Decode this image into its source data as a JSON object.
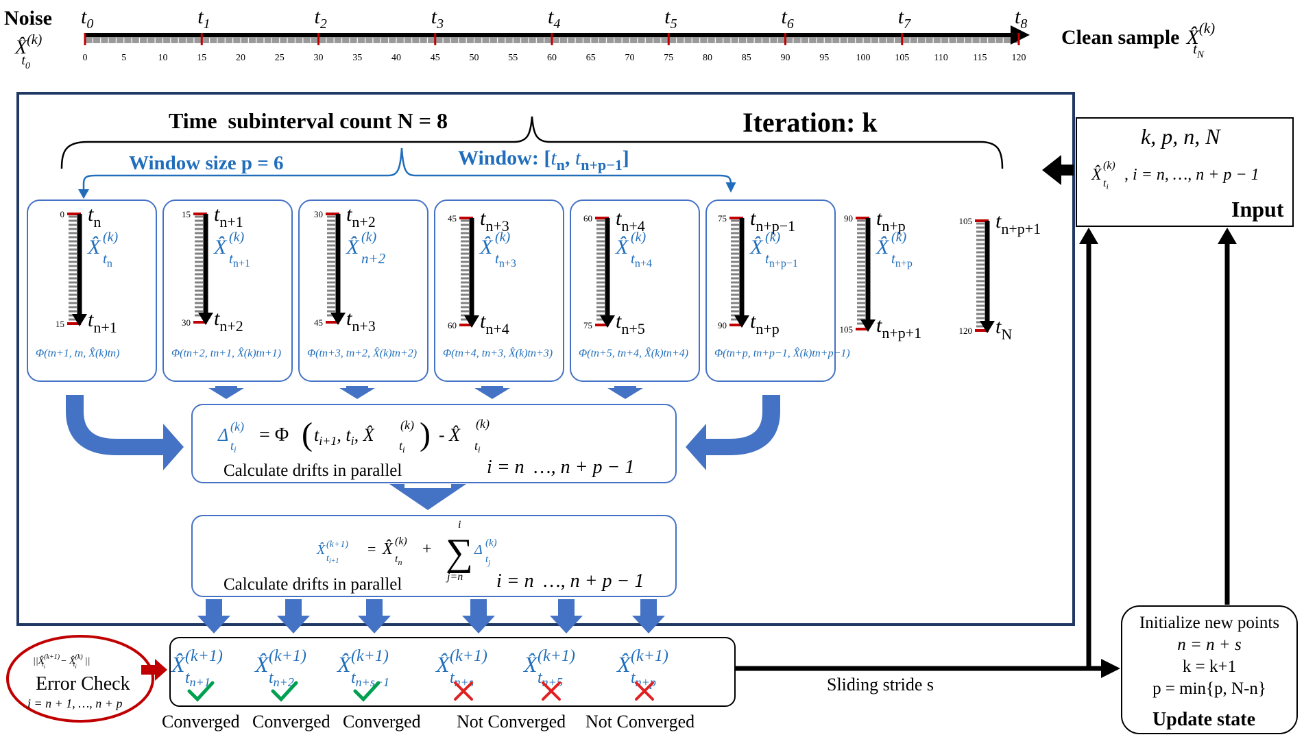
{
  "timeline": {
    "left_label": "Noise",
    "left_var": "X̂",
    "left_sup": "(k)",
    "left_sub": "t",
    "left_sub2": "0",
    "right_label": "Clean sample",
    "right_var": "X̂",
    "right_sup": "(k)",
    "right_sub": "t",
    "right_sub2": "N",
    "t_labels": [
      "t0",
      "t1",
      "t2",
      "t3",
      "t4",
      "t5",
      "t6",
      "t7",
      "t8"
    ],
    "ticks": [
      "0",
      "5",
      "10",
      "15",
      "20",
      "25",
      "30",
      "35",
      "40",
      "45",
      "50",
      "55",
      "60",
      "65",
      "70",
      "75",
      "80",
      "85",
      "90",
      "95",
      "100",
      "105",
      "110",
      "115",
      "120"
    ]
  },
  "main": {
    "count_text": "Time  subinterval count N = 8",
    "iteration_text": "Iteration: k",
    "window_size_text": "Window size p = 6",
    "window_text_a": "Window: [",
    "window_text_b": "t",
    "window_text_c": "n",
    "window_text_d": ", ",
    "window_text_e": "t",
    "window_text_f": "n+p−1",
    "window_text_g": "]"
  },
  "columns": [
    {
      "top_num": "0",
      "top_sub": "n",
      "var_sub": "t",
      "var_sub2": "n",
      "bot_num": "15",
      "bot_sub": "n+1",
      "phi": "Φ(t_{n+1}, t_n, X̂^{(k)}_{t_n})"
    },
    {
      "top_num": "15",
      "top_sub": "n+1",
      "var_sub": "t",
      "var_sub2": "n+1",
      "bot_num": "30",
      "bot_sub": "n+2",
      "phi": "Φ(t_{n+2}, t_{n+1}, X̂^{(k)}_{t_{n+1}})"
    },
    {
      "top_num": "30",
      "top_sub": "n+2",
      "var_sub": "n+2",
      "var_sub2": "",
      "bot_num": "45",
      "bot_sub": "n+3",
      "phi": "Φ(t_{n+3}, t_{n+2}, X̂^{(k)}_{t_{n+2}})"
    },
    {
      "top_num": "45",
      "top_sub": "n+3",
      "var_sub": "t",
      "var_sub2": "n+3",
      "bot_num": "60",
      "bot_sub": "n+4",
      "phi": "Φ(t_{n+4}, t_{n+3}, X̂^{(k)}_{t_{n+3}})"
    },
    {
      "top_num": "60",
      "top_sub": "n+4",
      "var_sub": "t",
      "var_sub2": "n+4",
      "bot_num": "75",
      "bot_sub": "n+5",
      "phi": "Φ(t_{n+5}, t_{n+4}, X̂^{(k)}_{t_{n+4}})"
    },
    {
      "top_num": "75",
      "top_sub": "n+p−1",
      "var_sub": "t",
      "var_sub2": "n+p−1",
      "bot_num": "90",
      "bot_sub": "n+p",
      "phi": "Φ(t_{n+p}, t_{n+p−1}, X̂^{(k)}_{t_{n+p−1}})"
    },
    {
      "top_num": "90",
      "top_sub": "n+p",
      "var_sub": "t",
      "var_sub2": "n+p",
      "bot_num": "105",
      "bot_sub": "n+p+1",
      "phi": ""
    },
    {
      "top_num": "105",
      "top_sub": "n+p+1",
      "var_sub": "",
      "var_sub2": "",
      "bot_num": "120",
      "bot_sub": "N",
      "phi": ""
    }
  ],
  "drift_box": {
    "formula": "Δ^{(k)}_{t_i} = Φ(t_{i+1}, t_i, X̂^{(k)}_{t_i}) - X̂^{(k)}_{t_i}",
    "caption": "Calculate drifts in parallel",
    "range": "i = n  …, n + p − 1"
  },
  "update_box": {
    "formula": "X̂^{(k+1)}_{t_{i+1}} = X̂^{(k)}_{t_n} + Σ_{j=n}^{i} Δ^{(k)}_{t_j}",
    "caption": "Calculate drifts in parallel",
    "range": "i = n  …, n + p − 1"
  },
  "results": [
    {
      "sub": "n+1",
      "mark": "check",
      "status": "Converged"
    },
    {
      "sub": "n+2",
      "mark": "check",
      "status": "Converged"
    },
    {
      "sub": "n+s−1",
      "mark": "check",
      "status": "Converged"
    },
    {
      "sub": "n+s",
      "mark": "cross",
      "status": "Not Converged"
    },
    {
      "sub": "n+5",
      "mark": "cross",
      "status": ""
    },
    {
      "sub": "n+p",
      "mark": "cross",
      "status": "Not Converged"
    }
  ],
  "error_check": {
    "formula": "||X̂^{(k+1)}_{t_i} − X̂^{(k)}_{t_i}||",
    "label": "Error Check",
    "range": "i = n + 1, …, n + p"
  },
  "input_box": {
    "line1": "k, p, n, N",
    "line2": "X̂^{(k)}_{t_i}, i = n, …, n + p − 1",
    "label": "Input"
  },
  "update_state": {
    "line1": "Initialize new points",
    "line2": "n = n + s",
    "line3": "k = k+1",
    "line4": "p = min{p, N-n}",
    "label": "Update state"
  },
  "stride_label": "Sliding stride s",
  "colors": {
    "blue": "#1f6dbb",
    "arrow": "#4472c4",
    "navy": "#1f3864",
    "red": "#c00000",
    "green": "#00a050",
    "cross": "#e02020"
  }
}
